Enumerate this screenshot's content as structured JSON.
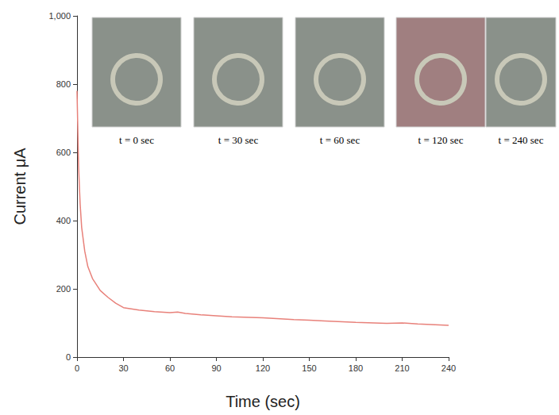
{
  "chart_data": {
    "type": "line",
    "x_label": "Time (sec)",
    "y_label": "Current μA",
    "x": [
      0,
      1,
      2,
      3,
      5,
      7,
      10,
      15,
      20,
      25,
      30,
      40,
      50,
      60,
      65,
      70,
      80,
      90,
      100,
      120,
      140,
      150,
      160,
      180,
      200,
      210,
      220,
      240
    ],
    "values": [
      780,
      560,
      450,
      380,
      310,
      265,
      230,
      195,
      175,
      158,
      145,
      138,
      133,
      130,
      132,
      128,
      124,
      121,
      118,
      115,
      110,
      108,
      106,
      102,
      99,
      100,
      97,
      93
    ],
    "color": "#e8817a",
    "xlim": [
      0,
      240
    ],
    "xticks": [
      0,
      30,
      60,
      90,
      120,
      150,
      180,
      210,
      240
    ],
    "ylim": [
      0,
      1000
    ],
    "yticks": [
      0,
      200,
      400,
      600,
      800,
      1000
    ],
    "grid": false,
    "annotations": [
      "t = 0 sec",
      "t = 30 sec",
      "t = 60 sec",
      "t = 120 sec",
      "t = 240 sec"
    ]
  }
}
